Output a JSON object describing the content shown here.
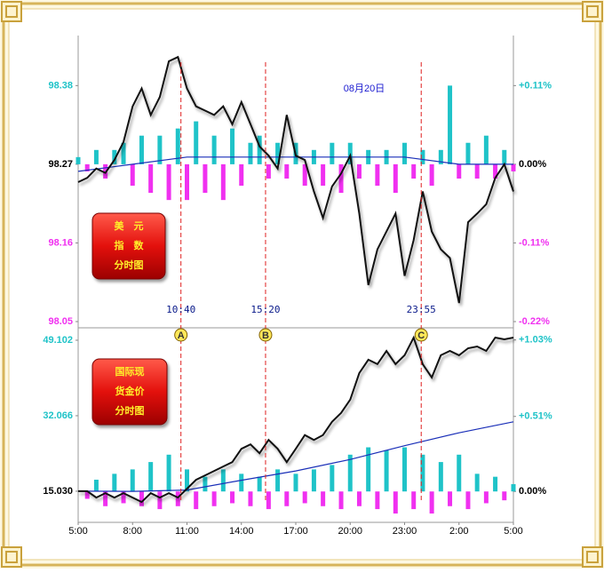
{
  "chart_data": [
    {
      "type": "line",
      "title": "08月20日",
      "label": [
        "美　元",
        "指　数",
        "分时图"
      ],
      "xlim": [
        5,
        29
      ],
      "ylim": [
        98.05,
        98.45
      ],
      "yticks": [
        98.05,
        98.16,
        98.27,
        98.38
      ],
      "y2lim": [
        -0.22,
        0.18
      ],
      "y2ticks": [
        {
          "value": -0.22,
          "label": "-0.22%"
        },
        {
          "value": -0.11,
          "label": "-0.11%"
        },
        {
          "value": 0,
          "label": "0.00%"
        },
        {
          "value": 0.11,
          "label": "+0.11%"
        }
      ],
      "x": [
        5,
        5.5,
        6,
        6.5,
        7,
        7.5,
        8,
        8.5,
        9,
        9.5,
        10,
        10.5,
        11,
        11.5,
        12,
        12.5,
        13,
        13.5,
        14,
        14.5,
        15,
        15.5,
        16,
        16.5,
        17,
        17.5,
        18,
        18.5,
        19,
        19.5,
        20,
        20.5,
        21,
        21.5,
        22,
        22.5,
        23,
        23.5,
        24,
        24.5,
        25,
        25.5,
        26,
        26.5,
        27,
        27.5,
        28,
        28.5,
        29
      ],
      "series": [
        {
          "type": "bar",
          "axis": "y2",
          "colors": [
            "#1fc3c8",
            "#f030f0"
          ],
          "values": [
            0.01,
            -0.01,
            0.02,
            -0.02,
            0.02,
            0.03,
            -0.03,
            0.04,
            -0.04,
            0.04,
            -0.05,
            0.05,
            -0.05,
            0.06,
            -0.04,
            0.04,
            -0.05,
            0.05,
            -0.03,
            0.03,
            0.04,
            -0.02,
            0.03,
            -0.02,
            0.03,
            -0.03,
            0.02,
            -0.03,
            0.03,
            -0.04,
            0.03,
            -0.02,
            0.02,
            -0.03,
            0.02,
            -0.04,
            0.03,
            -0.02,
            0.02,
            -0.03,
            0.02,
            0.11,
            -0.02,
            0.03,
            -0.02,
            0.04,
            -0.02,
            0.02,
            -0.01
          ]
        },
        {
          "type": "line",
          "color": "#1a2fb8",
          "x": [
            5,
            8,
            11,
            14,
            17,
            20,
            23,
            26,
            29
          ],
          "values": [
            98.26,
            98.27,
            98.28,
            98.28,
            98.28,
            98.28,
            98.28,
            98.27,
            98.27
          ]
        },
        {
          "type": "line",
          "color": "#111111",
          "values": [
            98.245,
            98.251,
            98.264,
            98.258,
            98.276,
            98.301,
            98.351,
            98.376,
            98.339,
            98.364,
            98.414,
            98.42,
            98.376,
            98.351,
            98.345,
            98.339,
            98.351,
            98.326,
            98.357,
            98.326,
            98.295,
            98.282,
            98.264,
            98.339,
            98.282,
            98.276,
            98.232,
            98.195,
            98.239,
            98.257,
            98.282,
            98.201,
            98.101,
            98.151,
            98.176,
            98.201,
            98.114,
            98.164,
            98.232,
            98.176,
            98.151,
            98.139,
            98.076,
            98.189,
            98.201,
            98.214,
            98.251,
            98.27,
            98.232
          ]
        }
      ],
      "annotations": [
        {
          "x": 10.667,
          "label": "10:40",
          "marker": "A"
        },
        {
          "x": 15.333,
          "label": "15:20",
          "marker": "B"
        },
        {
          "x": 23.917,
          "label": "23:55",
          "marker": "C"
        }
      ]
    },
    {
      "type": "line",
      "label": [
        "国际现",
        "货金价",
        "分时图"
      ],
      "xlim": [
        5,
        29
      ],
      "xticks": [
        {
          "value": 5,
          "label": "5:00"
        },
        {
          "value": 8,
          "label": "8:00"
        },
        {
          "value": 11,
          "label": "11:00"
        },
        {
          "value": 14,
          "label": "14:00"
        },
        {
          "value": 17,
          "label": "17:00"
        },
        {
          "value": 20,
          "label": "20:00"
        },
        {
          "value": 23,
          "label": "23:00"
        },
        {
          "value": 26,
          "label": "2:00"
        },
        {
          "value": 29,
          "label": "5:00"
        }
      ],
      "ylim": [
        8,
        50.5
      ],
      "yticks": [
        {
          "value": 15.03,
          "label": "15.030"
        },
        32.066,
        49.102
      ],
      "y2lim": [
        -0.21,
        1.07
      ],
      "y2ticks": [
        {
          "value": 0,
          "label": "0.00%"
        },
        {
          "value": 0.51,
          "label": "+0.51%"
        },
        {
          "value": 1.03,
          "label": "+1.03%"
        }
      ],
      "x": [
        5,
        5.5,
        6,
        6.5,
        7,
        7.5,
        8,
        8.5,
        9,
        9.5,
        10,
        10.5,
        11,
        11.5,
        12,
        12.5,
        13,
        13.5,
        14,
        14.5,
        15,
        15.5,
        16,
        16.5,
        17,
        17.5,
        18,
        18.5,
        19,
        19.5,
        20,
        20.5,
        21,
        21.5,
        22,
        22.5,
        23,
        23.5,
        24,
        24.5,
        25,
        25.5,
        26,
        26.5,
        27,
        27.5,
        28,
        28.5,
        29
      ],
      "series": [
        {
          "type": "bar",
          "axis": "y2",
          "colors": [
            "#1fc3c8",
            "#f030f0"
          ],
          "values": [
            0,
            -0.05,
            0.08,
            -0.1,
            0.12,
            -0.08,
            0.15,
            -0.1,
            0.2,
            -0.12,
            0.25,
            -0.1,
            0.15,
            -0.12,
            0.1,
            -0.1,
            0.15,
            -0.08,
            0.12,
            -0.1,
            0.1,
            -0.12,
            0.15,
            -0.1,
            0.12,
            -0.08,
            0.15,
            -0.1,
            0.18,
            -0.12,
            0.25,
            -0.1,
            0.3,
            -0.12,
            0.28,
            -0.15,
            0.3,
            -0.12,
            0.25,
            -0.15,
            0.2,
            -0.1,
            0.25,
            -0.12,
            0.12,
            -0.08,
            0.1,
            -0.06,
            0.05
          ]
        },
        {
          "type": "line",
          "color": "#1a2fb8",
          "x": [
            5,
            8,
            11,
            14,
            17,
            20,
            23,
            26,
            29
          ],
          "values": [
            15.03,
            15.0,
            15.3,
            17.5,
            19.6,
            22.2,
            25.3,
            28.2,
            30.7
          ]
        },
        {
          "type": "line",
          "color": "#111111",
          "values": [
            15.03,
            15.03,
            13.6,
            14.6,
            13.6,
            14.6,
            13.6,
            12.6,
            14.6,
            13.6,
            14.6,
            13.6,
            15.6,
            17.6,
            18.6,
            19.6,
            20.6,
            21.6,
            24.6,
            25.6,
            23.6,
            26.6,
            24.6,
            21.6,
            24.6,
            27.7,
            26.6,
            27.7,
            30.7,
            32.7,
            35.7,
            41.7,
            44.7,
            43.7,
            46.7,
            43.7,
            45.7,
            49.7,
            43.7,
            40.7,
            45.7,
            46.7,
            45.7,
            47.3,
            47.7,
            46.7,
            49.7,
            49.3,
            49.7
          ]
        }
      ]
    }
  ]
}
